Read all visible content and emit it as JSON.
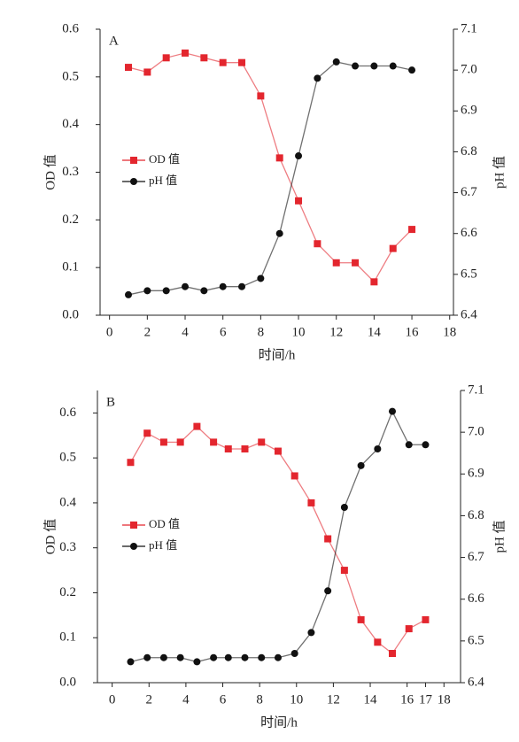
{
  "chart_data": [
    {
      "type": "line",
      "annotation": "A",
      "xlabel": "时间/h",
      "ylabel": "OD 值",
      "y2label": "pH 值",
      "x": [
        1,
        2,
        3,
        4,
        5,
        6,
        7,
        8,
        9,
        10,
        11,
        12,
        13,
        14,
        15,
        16
      ],
      "series": [
        {
          "name": "OD 值",
          "color": "#e3262e",
          "marker": "square",
          "axis": "y",
          "values": [
            0.52,
            0.51,
            0.54,
            0.55,
            0.54,
            0.53,
            0.53,
            0.46,
            0.33,
            0.24,
            0.15,
            0.11,
            0.11,
            0.07,
            0.14,
            0.18
          ]
        },
        {
          "name": "pH 值",
          "color": "#111111",
          "marker": "circle",
          "axis": "y2",
          "values": [
            6.45,
            6.46,
            6.46,
            6.47,
            6.46,
            6.47,
            6.47,
            6.49,
            6.6,
            6.79,
            6.98,
            7.02,
            7.01,
            7.01,
            7.01,
            7.0
          ]
        }
      ],
      "xlim": [
        -0.5,
        18.2
      ],
      "xticks": [
        0,
        2,
        4,
        6,
        8,
        10,
        12,
        14,
        16,
        18
      ],
      "ylim": [
        0,
        0.6
      ],
      "yticks": [
        {
          "value": 0,
          "label": "0.0"
        },
        0.1,
        0.2,
        0.3,
        0.4,
        0.5,
        0.6
      ],
      "y2lim": [
        6.4,
        7.1
      ],
      "y2ticks": [
        6.4,
        6.5,
        6.6,
        6.7,
        6.8,
        6.9,
        {
          "value": 7,
          "label": "7.0"
        },
        7.1
      ]
    },
    {
      "type": "line",
      "annotation": "B",
      "xlabel": "时间/h",
      "ylabel": "OD 值",
      "y2label": "pH 值",
      "x": [
        1,
        1.9,
        2.8,
        3.7,
        4.6,
        5.5,
        6.3,
        7.2,
        8.1,
        9,
        9.9,
        10.8,
        11.7,
        12.6,
        13.5,
        14.4,
        15.2,
        16.1,
        17
      ],
      "series": [
        {
          "name": "OD 值",
          "color": "#e3262e",
          "marker": "square",
          "axis": "y",
          "values": [
            0.49,
            0.555,
            0.535,
            0.535,
            0.57,
            0.535,
            0.52,
            0.52,
            0.535,
            0.515,
            0.46,
            0.4,
            0.32,
            0.25,
            0.14,
            0.09,
            0.065,
            0.12,
            0.14
          ]
        },
        {
          "name": "pH 值",
          "color": "#111111",
          "marker": "circle",
          "axis": "y2",
          "values": [
            6.45,
            6.46,
            6.46,
            6.46,
            6.45,
            6.46,
            6.46,
            6.46,
            6.46,
            6.46,
            6.47,
            6.52,
            6.62,
            6.82,
            6.92,
            6.96,
            7.05,
            6.97,
            6.97
          ]
        }
      ],
      "xlim": [
        -0.8,
        18.9
      ],
      "xticks": [
        0,
        2,
        4,
        6,
        8,
        10,
        12,
        14,
        16,
        17,
        18
      ],
      "ylim": [
        0,
        0.65
      ],
      "yticks": [
        {
          "value": 0,
          "label": "0.0"
        },
        0.1,
        0.2,
        0.3,
        0.4,
        0.5,
        0.6
      ],
      "y2lim": [
        6.4,
        7.1
      ],
      "y2ticks": [
        6.4,
        6.5,
        6.6,
        6.7,
        6.8,
        6.9,
        {
          "value": 7,
          "label": "7.0"
        },
        7.1
      ]
    }
  ]
}
